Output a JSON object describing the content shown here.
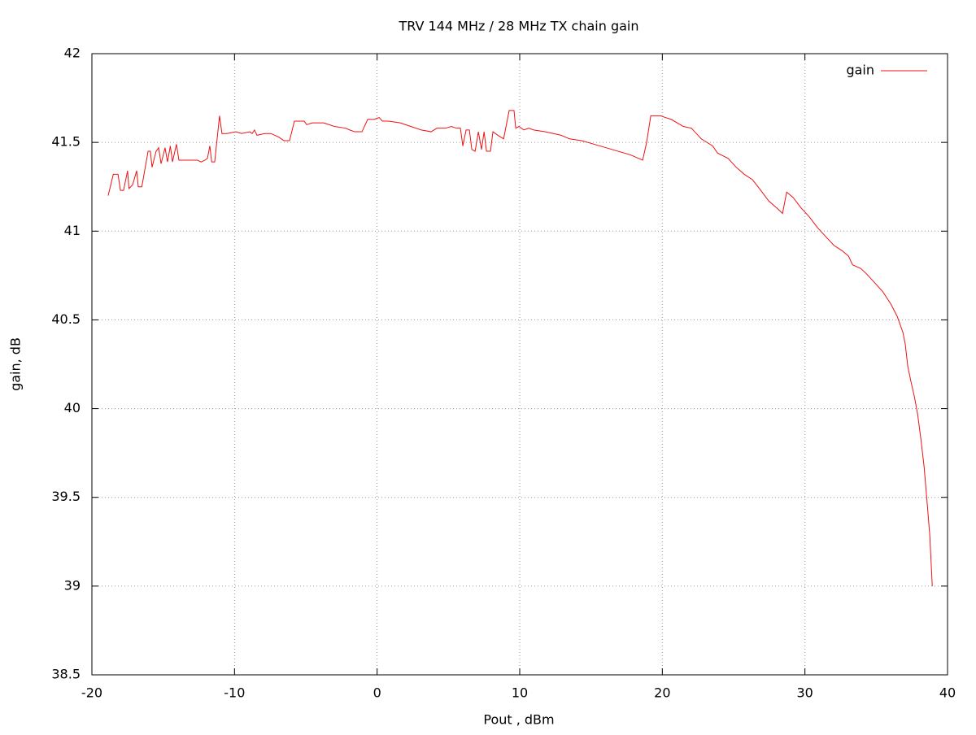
{
  "chart_data": {
    "type": "line",
    "title": "TRV 144 MHz / 28 MHz TX chain gain",
    "x_label": "Pout , dBm",
    "y_label": "gain, dB",
    "xlim": [
      -20,
      40
    ],
    "xticks": [
      -20,
      -10,
      0,
      10,
      20,
      30,
      40
    ],
    "ylim": [
      38.5,
      42
    ],
    "yticks": [
      38.5,
      39,
      39.5,
      40,
      40.5,
      41,
      41.5,
      42
    ],
    "grid": true,
    "legend": "top right",
    "x": [
      -18.86,
      -18.5,
      -18.17,
      -18.0,
      -17.78,
      -17.5,
      -17.4,
      -17.15,
      -16.86,
      -16.75,
      -16.5,
      -16.06,
      -15.9,
      -15.78,
      -15.5,
      -15.32,
      -15.15,
      -14.87,
      -14.7,
      -14.5,
      -14.35,
      -14.07,
      -13.9,
      -13.0,
      -12.6,
      -12.35,
      -12.07,
      -11.9,
      -11.73,
      -11.6,
      -11.39,
      -11.05,
      -10.88,
      -10.53,
      -9.9,
      -9.5,
      -8.93,
      -8.76,
      -8.6,
      -8.42,
      -7.9,
      -7.45,
      -6.9,
      -6.54,
      -6.14,
      -5.8,
      -5.46,
      -5.23,
      -5.11,
      -4.94,
      -4.54,
      -3.74,
      -3.0,
      -2.2,
      -1.92,
      -1.57,
      -1.06,
      -0.66,
      -0.2,
      0.14,
      0.37,
      0.82,
      1.62,
      2.36,
      3.1,
      3.79,
      4.19,
      4.8,
      5.21,
      5.56,
      5.84,
      6.01,
      6.24,
      6.47,
      6.64,
      6.87,
      7.1,
      7.32,
      7.5,
      7.67,
      7.95,
      8.12,
      8.47,
      8.87,
      9.26,
      9.6,
      9.72,
      9.95,
      10.29,
      10.63,
      10.98,
      11.77,
      12.91,
      13.49,
      14.34,
      15.2,
      16.05,
      16.9,
      17.76,
      18.62,
      18.9,
      19.19,
      19.53,
      19.87,
      20.22,
      20.62,
      21.47,
      22.04,
      22.73,
      23.53,
      23.87,
      24.61,
      25.18,
      25.75,
      26.32,
      26.9,
      27.46,
      28.03,
      28.43,
      28.72,
      29.17,
      29.74,
      30.31,
      30.88,
      31.45,
      32.03,
      32.6,
      33.05,
      33.34,
      33.91,
      34.31,
      34.88,
      35.45,
      36.02,
      36.47,
      36.87,
      37.04,
      37.21,
      37.44,
      37.67,
      37.9,
      38.13,
      38.36,
      38.58,
      38.76,
      38.93
    ],
    "series": [
      {
        "name": "gain",
        "color": "#ee1111",
        "values": [
          41.2,
          41.32,
          41.32,
          41.23,
          41.23,
          41.34,
          41.24,
          41.26,
          41.34,
          41.25,
          41.25,
          41.45,
          41.45,
          41.36,
          41.45,
          41.47,
          41.38,
          41.47,
          41.39,
          41.48,
          41.39,
          41.49,
          41.4,
          41.4,
          41.4,
          41.39,
          41.4,
          41.41,
          41.48,
          41.39,
          41.39,
          41.65,
          41.55,
          41.55,
          41.56,
          41.55,
          41.56,
          41.55,
          41.57,
          41.54,
          41.55,
          41.55,
          41.53,
          41.51,
          41.51,
          41.62,
          41.62,
          41.62,
          41.62,
          41.6,
          41.61,
          41.61,
          41.59,
          41.58,
          41.57,
          41.56,
          41.56,
          41.63,
          41.63,
          41.64,
          41.62,
          41.62,
          41.61,
          41.59,
          41.57,
          41.56,
          41.58,
          41.58,
          41.59,
          41.58,
          41.58,
          41.48,
          41.57,
          41.57,
          41.46,
          41.45,
          41.56,
          41.46,
          41.56,
          41.45,
          41.45,
          41.56,
          41.54,
          41.52,
          41.68,
          41.68,
          41.58,
          41.59,
          41.57,
          41.58,
          41.57,
          41.56,
          41.54,
          41.52,
          41.51,
          41.49,
          41.47,
          41.45,
          41.43,
          41.4,
          41.5,
          41.65,
          41.65,
          41.65,
          41.64,
          41.63,
          41.59,
          41.58,
          41.52,
          41.48,
          41.44,
          41.41,
          41.36,
          41.32,
          41.29,
          41.23,
          41.17,
          41.13,
          41.1,
          41.22,
          41.19,
          41.13,
          41.08,
          41.02,
          40.97,
          40.92,
          40.89,
          40.86,
          40.81,
          40.79,
          40.76,
          40.71,
          40.66,
          40.59,
          40.52,
          40.43,
          40.36,
          40.24,
          40.15,
          40.07,
          39.97,
          39.83,
          39.67,
          39.46,
          39.28,
          39.0
        ]
      }
    ]
  }
}
